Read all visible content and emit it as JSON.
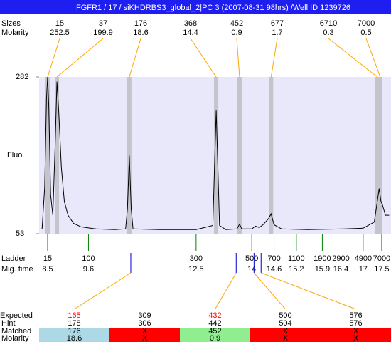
{
  "title": "FGFR1 / 17 / siKHDRBS3_global_2|PC 3 (2007-08-31 98hrs) /Well ID 1239726",
  "chart_data": {
    "type": "line",
    "y_label": "Fluo.",
    "xlim": [
      8.27,
      17.75
    ],
    "ylim": [
      53,
      282
    ],
    "yticks": [
      53,
      282
    ],
    "color": "#000000",
    "x": [
      8.35,
      8.42,
      8.47,
      8.5,
      8.53,
      8.58,
      8.64,
      8.7,
      8.75,
      8.8,
      8.87,
      8.95,
      9.05,
      9.2,
      9.4,
      9.8,
      10.3,
      10.6,
      10.65,
      10.7,
      10.75,
      10.8,
      11.5,
      12.5,
      12.95,
      13.0,
      13.04,
      13.08,
      13.13,
      13.3,
      13.6,
      13.67,
      13.73,
      14.0,
      14.1,
      14.2,
      14.3,
      14.45,
      14.52,
      14.6,
      14.8,
      15.5,
      16.5,
      17.0,
      17.3,
      17.38,
      17.43,
      17.48,
      17.52,
      17.6,
      17.7
    ],
    "values": [
      60,
      120,
      250,
      282,
      240,
      110,
      80,
      180,
      275,
      230,
      150,
      100,
      80,
      68,
      63,
      60,
      59,
      60,
      90,
      167,
      90,
      60,
      59,
      59,
      65,
      160,
      233,
      160,
      65,
      59,
      60,
      67,
      60,
      60,
      64,
      62,
      66,
      75,
      82,
      66,
      60,
      59,
      60,
      61,
      70,
      100,
      119,
      100,
      95,
      80,
      80
    ],
    "peaks": {
      "labels": [
        "Sizes",
        "Molarity"
      ],
      "sizes": [
        15,
        37,
        176,
        368,
        452,
        677,
        6710,
        7000
      ],
      "molarity": [
        252.5,
        199.9,
        18.6,
        14.4,
        0.9,
        1.7,
        0.3,
        0.5
      ],
      "times": [
        8.5,
        8.75,
        10.7,
        13.04,
        13.67,
        14.52,
        17.38,
        17.46
      ],
      "color": "#ffa500"
    },
    "ladder": {
      "labels": [
        "Ladder",
        "Mig. time"
      ],
      "sizes": [
        15,
        100,
        300,
        500,
        700,
        1100,
        1900,
        2900,
        4900,
        7000
      ]
    },
    "xticks": [
      8.5,
      9.6,
      12.5,
      14,
      14.6,
      15.2,
      15.9,
      16.4,
      17,
      17.5
    ],
    "expected": {
      "row_labels": [
        "Expected",
        "Hint",
        "Matched",
        "Molarity"
      ],
      "expected": [
        165,
        309,
        432,
        500,
        576
      ],
      "expected_colors": [
        "#ff0000",
        "#000000",
        "#ff0000",
        "#000000",
        "#000000"
      ],
      "hint": [
        178,
        306,
        442,
        504,
        576
      ],
      "matched": [
        176,
        "X",
        452,
        "X",
        "X"
      ],
      "molarity": [
        18.6,
        "X",
        0.9,
        "X",
        "X"
      ],
      "cell_colors": [
        "#add8e6",
        "#ff0000",
        "#90ee90",
        "#ff0000",
        "#ff0000"
      ],
      "marker_times": [
        10.74,
        null,
        13.58,
        14.06,
        14.25
      ]
    }
  }
}
